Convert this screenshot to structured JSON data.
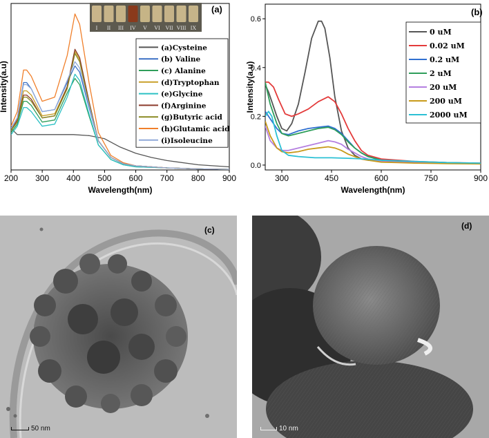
{
  "chart_data": [
    {
      "panel": "(a)",
      "type": "line",
      "xlabel": "Wavelength(nm)",
      "ylabel": "Intensity(a.u)",
      "xlim": [
        200,
        900
      ],
      "xticks": [
        200,
        300,
        400,
        500,
        600,
        700,
        800,
        900
      ],
      "y_tick_labels": "none",
      "inset_vial_labels": [
        "I",
        "II",
        "III",
        "IV",
        "V",
        "VI",
        "VII",
        "VIII",
        "IX"
      ],
      "inset_vial_colors": [
        "#c9b58a",
        "#c7b489",
        "#c5b387",
        "#8a3a1c",
        "#c6b486",
        "#c8b58a",
        "#c5b288",
        "#c8b68b",
        "#c6b489"
      ],
      "series": [
        {
          "name": "(a)Cysteine",
          "color": "#555555",
          "x": [
            200,
            220,
            240,
            260,
            300,
            350,
            400,
            450,
            500,
            550,
            600,
            650,
            700,
            800,
            900
          ],
          "y": [
            0.2,
            0.17,
            0.17,
            0.17,
            0.17,
            0.17,
            0.17,
            0.165,
            0.15,
            0.11,
            0.08,
            0.06,
            0.045,
            0.025,
            0.015
          ]
        },
        {
          "name": "(b) Valine",
          "color": "#3a6fc4",
          "x": [
            200,
            220,
            240,
            250,
            265,
            300,
            340,
            380,
            405,
            420,
            450,
            480,
            520,
            560,
            600,
            700,
            800,
            900
          ],
          "y": [
            0.2,
            0.25,
            0.42,
            0.42,
            0.39,
            0.28,
            0.29,
            0.42,
            0.5,
            0.47,
            0.3,
            0.14,
            0.06,
            0.03,
            0.02,
            0.01,
            0.005,
            0.003
          ]
        },
        {
          "name": "(c) Alanine",
          "color": "#2e9e5a",
          "x": [
            200,
            220,
            240,
            250,
            265,
            300,
            340,
            380,
            405,
            420,
            450,
            480,
            520,
            560,
            600,
            700,
            800,
            900
          ],
          "y": [
            0.18,
            0.22,
            0.33,
            0.33,
            0.31,
            0.23,
            0.24,
            0.37,
            0.44,
            0.41,
            0.26,
            0.12,
            0.05,
            0.025,
            0.015,
            0.01,
            0.005,
            0.003
          ]
        },
        {
          "name": "(d)Tryptophan",
          "color": "#c8a02a",
          "x": [
            200,
            220,
            240,
            250,
            265,
            300,
            340,
            380,
            405,
            420,
            450,
            480,
            520,
            560,
            600,
            700,
            800,
            900
          ],
          "y": [
            0.19,
            0.24,
            0.38,
            0.38,
            0.36,
            0.26,
            0.27,
            0.4,
            0.57,
            0.53,
            0.32,
            0.14,
            0.06,
            0.03,
            0.02,
            0.01,
            0.005,
            0.003
          ]
        },
        {
          "name": "(e)Glycine",
          "color": "#2bc0c4",
          "x": [
            200,
            220,
            240,
            250,
            265,
            300,
            340,
            380,
            405,
            420,
            450,
            480,
            520,
            560,
            600,
            700,
            800,
            900
          ],
          "y": [
            0.17,
            0.21,
            0.3,
            0.3,
            0.28,
            0.21,
            0.22,
            0.35,
            0.46,
            0.43,
            0.27,
            0.12,
            0.05,
            0.025,
            0.015,
            0.01,
            0.005,
            0.003
          ]
        },
        {
          "name": "(f)Arginine",
          "color": "#8b3a2a",
          "x": [
            200,
            220,
            240,
            250,
            265,
            300,
            340,
            380,
            405,
            420,
            450,
            480,
            520,
            560,
            600,
            700,
            800,
            900
          ],
          "y": [
            0.19,
            0.24,
            0.36,
            0.36,
            0.34,
            0.25,
            0.26,
            0.4,
            0.58,
            0.54,
            0.33,
            0.14,
            0.06,
            0.03,
            0.02,
            0.01,
            0.005,
            0.003
          ]
        },
        {
          "name": "(g)Butyric acid",
          "color": "#8a8a22",
          "x": [
            200,
            220,
            240,
            250,
            265,
            300,
            340,
            380,
            405,
            420,
            450,
            480,
            520,
            560,
            600,
            700,
            800,
            900
          ],
          "y": [
            0.19,
            0.23,
            0.35,
            0.35,
            0.33,
            0.25,
            0.26,
            0.39,
            0.56,
            0.52,
            0.32,
            0.14,
            0.06,
            0.03,
            0.02,
            0.01,
            0.005,
            0.003
          ]
        },
        {
          "name": "(h)Glutamic acid",
          "color": "#f07f2a",
          "x": [
            200,
            220,
            240,
            250,
            265,
            300,
            340,
            380,
            405,
            420,
            450,
            480,
            520,
            560,
            600,
            700,
            800,
            900
          ],
          "y": [
            0.21,
            0.28,
            0.48,
            0.48,
            0.45,
            0.33,
            0.35,
            0.55,
            0.75,
            0.7,
            0.42,
            0.18,
            0.07,
            0.035,
            0.02,
            0.01,
            0.005,
            0.003
          ]
        },
        {
          "name": "(i)Isoleucine",
          "color": "#8fa8d8",
          "x": [
            200,
            220,
            240,
            250,
            265,
            300,
            340,
            380,
            405,
            420,
            450,
            480,
            520,
            560,
            600,
            700,
            800,
            900
          ],
          "y": [
            0.2,
            0.25,
            0.41,
            0.41,
            0.39,
            0.28,
            0.29,
            0.43,
            0.52,
            0.49,
            0.31,
            0.14,
            0.06,
            0.03,
            0.02,
            0.01,
            0.005,
            0.003
          ]
        }
      ]
    },
    {
      "panel": "(b)",
      "type": "line",
      "xlabel": "Wavelength(nm)",
      "ylabel": "Intensity(a.u)",
      "xlim": [
        250,
        900
      ],
      "ylim": [
        -0.02,
        0.66
      ],
      "xticks": [
        300,
        450,
        600,
        750,
        900
      ],
      "yticks": [
        0.0,
        0.2,
        0.4,
        0.6
      ],
      "series": [
        {
          "name": "0 uM",
          "color": "#555555",
          "x": [
            250,
            260,
            270,
            285,
            300,
            315,
            330,
            350,
            370,
            390,
            410,
            420,
            430,
            445,
            460,
            480,
            500,
            520,
            540,
            560,
            600,
            650,
            700,
            800,
            900
          ],
          "y": [
            0.33,
            0.3,
            0.26,
            0.2,
            0.15,
            0.14,
            0.17,
            0.25,
            0.38,
            0.52,
            0.59,
            0.59,
            0.56,
            0.44,
            0.28,
            0.14,
            0.07,
            0.04,
            0.025,
            0.02,
            0.015,
            0.012,
            0.01,
            0.008,
            0.006
          ]
        },
        {
          "name": "0.02 uM",
          "color": "#e33a3a",
          "x": [
            250,
            260,
            275,
            290,
            310,
            330,
            350,
            380,
            410,
            440,
            460,
            480,
            500,
            520,
            540,
            560,
            600,
            650,
            700,
            800,
            900
          ],
          "y": [
            0.34,
            0.34,
            0.32,
            0.27,
            0.21,
            0.2,
            0.21,
            0.23,
            0.26,
            0.28,
            0.26,
            0.21,
            0.15,
            0.1,
            0.06,
            0.04,
            0.025,
            0.02,
            0.015,
            0.01,
            0.008
          ]
        },
        {
          "name": "0.2 uM",
          "color": "#2f6fd0",
          "x": [
            250,
            265,
            285,
            300,
            320,
            350,
            380,
            410,
            440,
            460,
            480,
            500,
            520,
            540,
            560,
            600,
            650,
            700,
            800,
            900
          ],
          "y": [
            0.22,
            0.19,
            0.15,
            0.13,
            0.125,
            0.14,
            0.15,
            0.155,
            0.16,
            0.15,
            0.13,
            0.1,
            0.07,
            0.05,
            0.035,
            0.02,
            0.015,
            0.012,
            0.01,
            0.007
          ]
        },
        {
          "name": "2 uM",
          "color": "#2e9e5a",
          "x": [
            250,
            265,
            285,
            300,
            320,
            350,
            380,
            410,
            440,
            460,
            480,
            500,
            520,
            540,
            560,
            600,
            650,
            700,
            800,
            900
          ],
          "y": [
            0.34,
            0.25,
            0.17,
            0.13,
            0.12,
            0.13,
            0.14,
            0.15,
            0.155,
            0.145,
            0.125,
            0.095,
            0.07,
            0.05,
            0.035,
            0.02,
            0.015,
            0.012,
            0.01,
            0.007
          ]
        },
        {
          "name": "20 uM",
          "color": "#b47fe0",
          "x": [
            250,
            265,
            285,
            300,
            320,
            350,
            380,
            410,
            440,
            460,
            480,
            500,
            520,
            540,
            560,
            600,
            650,
            700,
            800,
            900
          ],
          "y": [
            0.16,
            0.1,
            0.07,
            0.06,
            0.06,
            0.07,
            0.08,
            0.09,
            0.1,
            0.095,
            0.085,
            0.065,
            0.05,
            0.035,
            0.025,
            0.015,
            0.012,
            0.01,
            0.008,
            0.006
          ]
        },
        {
          "name": "200 uM",
          "color": "#c89a1a",
          "x": [
            250,
            265,
            285,
            300,
            320,
            350,
            380,
            410,
            440,
            460,
            480,
            500,
            520,
            540,
            560,
            600,
            650,
            700,
            800,
            900
          ],
          "y": [
            0.18,
            0.12,
            0.07,
            0.055,
            0.05,
            0.055,
            0.065,
            0.07,
            0.075,
            0.07,
            0.06,
            0.045,
            0.035,
            0.025,
            0.02,
            0.012,
            0.01,
            0.008,
            0.006,
            0.005
          ]
        },
        {
          "name": "2000 uM",
          "color": "#2bc0d4",
          "x": [
            250,
            260,
            270,
            285,
            300,
            320,
            350,
            400,
            450,
            500,
            550,
            600,
            700,
            800,
            900
          ],
          "y": [
            0.2,
            0.22,
            0.2,
            0.12,
            0.06,
            0.04,
            0.035,
            0.03,
            0.03,
            0.028,
            0.025,
            0.02,
            0.015,
            0.01,
            0.008
          ]
        }
      ]
    }
  ],
  "tem_c": {
    "label": "(c)",
    "scale": "50 nm"
  },
  "tem_d": {
    "label": "(d)",
    "scale": "10 nm"
  }
}
